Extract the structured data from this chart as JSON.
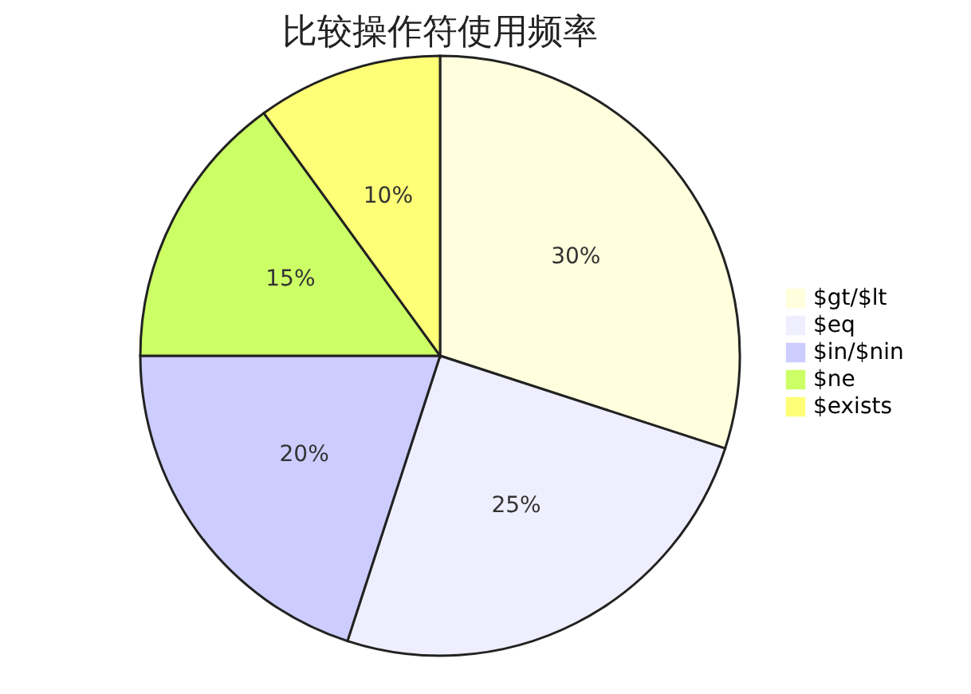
{
  "chart_data": {
    "type": "pie",
    "title": "比较操作符使用频率",
    "categories": [
      "$gt/$lt",
      "$eq",
      "$in/$nin",
      "$ne",
      "$exists"
    ],
    "values": [
      30,
      25,
      20,
      15,
      10
    ],
    "value_labels": [
      "30%",
      "25%",
      "20%",
      "15%",
      "10%"
    ],
    "colors": [
      "#ffffdd",
      "#eeeeff",
      "#ccccff",
      "#ccff66",
      "#ffff77"
    ],
    "legend": "right"
  }
}
